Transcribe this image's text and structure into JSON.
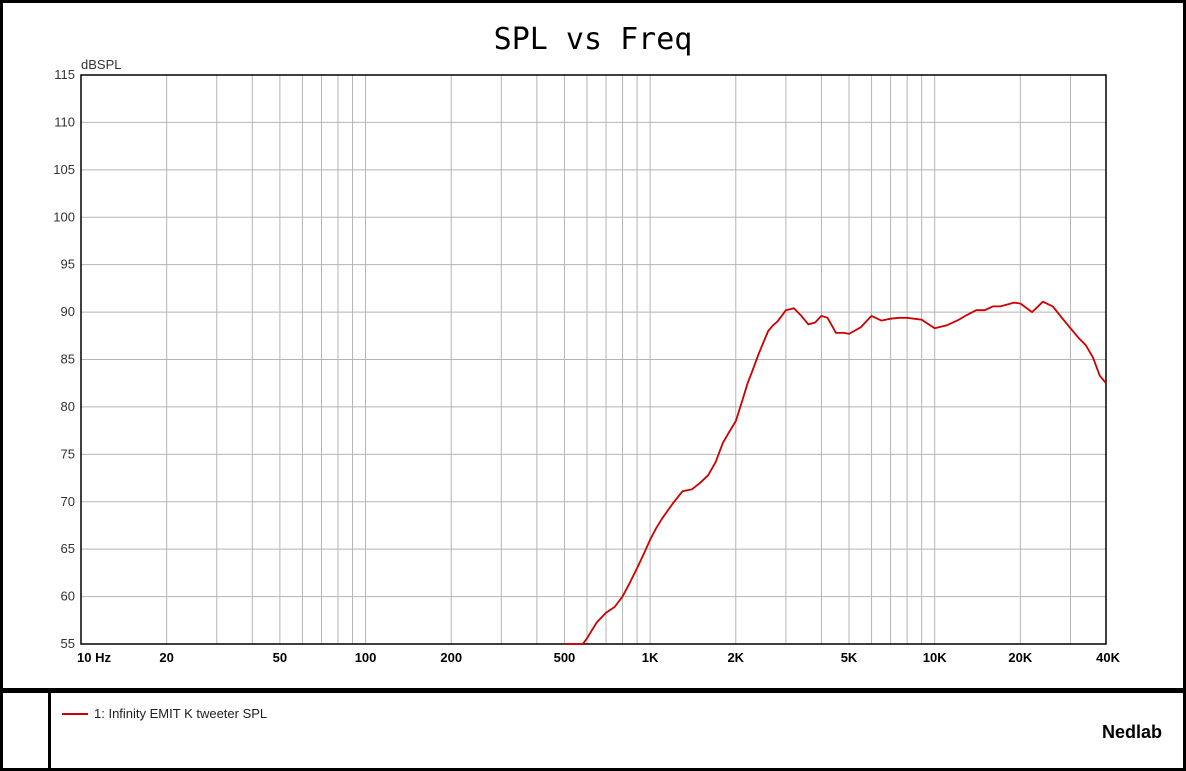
{
  "chart_data": {
    "type": "line",
    "title": "SPL vs Freq",
    "ylabel": "dBSPL",
    "xlabel": "",
    "xscale": "log",
    "xlim": [
      10,
      40000
    ],
    "ylim": [
      55,
      115
    ],
    "grid": true,
    "x_ticks": [
      {
        "value": 10,
        "label": "10  Hz"
      },
      {
        "value": 20,
        "label": "20"
      },
      {
        "value": 50,
        "label": "50"
      },
      {
        "value": 100,
        "label": "100"
      },
      {
        "value": 200,
        "label": "200"
      },
      {
        "value": 500,
        "label": "500"
      },
      {
        "value": 1000,
        "label": "1K"
      },
      {
        "value": 2000,
        "label": "2K"
      },
      {
        "value": 5000,
        "label": "5K"
      },
      {
        "value": 10000,
        "label": "10K"
      },
      {
        "value": 20000,
        "label": "20K"
      },
      {
        "value": 40000,
        "label": "40K"
      }
    ],
    "y_ticks": [
      115,
      110,
      105,
      100,
      95,
      90,
      85,
      80,
      75,
      70,
      65,
      60,
      55
    ],
    "series": [
      {
        "name": "1: Infinity EMIT K tweeter SPL",
        "color": "#cc0000",
        "x": [
          500,
          580,
          600,
          650,
          700,
          750,
          800,
          850,
          900,
          950,
          1000,
          1050,
          1100,
          1200,
          1300,
          1400,
          1500,
          1600,
          1700,
          1800,
          1900,
          2000,
          2100,
          2200,
          2300,
          2400,
          2500,
          2600,
          2700,
          2800,
          2900,
          3000,
          3200,
          3400,
          3600,
          3800,
          4000,
          4200,
          4500,
          4800,
          5000,
          5500,
          6000,
          6500,
          7000,
          7500,
          8000,
          9000,
          10000,
          11000,
          12000,
          13000,
          14000,
          15000,
          16000,
          17000,
          18000,
          19000,
          20000,
          22000,
          24000,
          26000,
          28000,
          30000,
          32000,
          34000,
          36000,
          38000,
          40000
        ],
        "y": [
          55,
          55,
          55.6,
          57.3,
          58.3,
          58.9,
          60,
          61.5,
          63,
          64.5,
          66,
          67.2,
          68.2,
          69.8,
          71.1,
          71.3,
          72,
          72.8,
          74.2,
          76.2,
          77.4,
          78.5,
          80.5,
          82.5,
          84,
          85.5,
          86.8,
          88,
          88.6,
          89,
          89.6,
          90.2,
          90.4,
          89.6,
          88.7,
          88.9,
          89.6,
          89.4,
          87.8,
          87.8,
          87.7,
          88.4,
          89.6,
          89.1,
          89.3,
          89.4,
          89.4,
          89.2,
          88.3,
          88.6,
          89.1,
          89.7,
          90.2,
          90.2,
          90.6,
          90.6,
          90.8,
          91,
          90.9,
          90,
          91.1,
          90.6,
          89.4,
          88.3,
          87.3,
          86.5,
          85.2,
          83.3,
          82.5
        ]
      }
    ]
  },
  "brand": "Nedlab"
}
